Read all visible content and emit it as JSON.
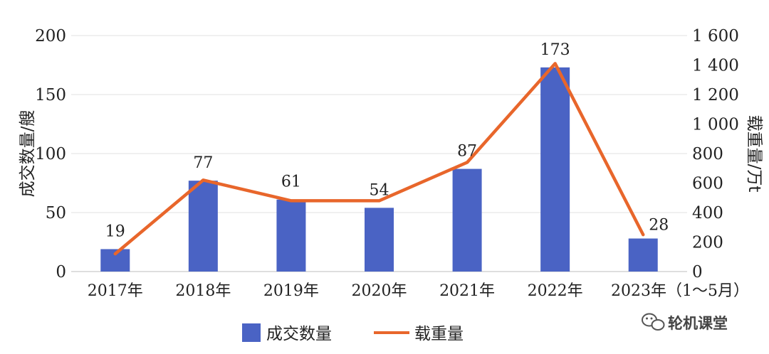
{
  "chart_data": {
    "type": "bar",
    "categories": [
      "2017年",
      "2018年",
      "2019年",
      "2020年",
      "2021年",
      "2022年",
      "2023年（1～5月）"
    ],
    "series": [
      {
        "name": "成交数量",
        "type": "bar",
        "axis": "left",
        "color": "#4a63c4",
        "values": [
          19,
          77,
          61,
          54,
          87,
          173,
          28
        ]
      },
      {
        "name": "载重量",
        "type": "line",
        "axis": "right",
        "color": "#e8662b",
        "values": [
          120,
          620,
          480,
          480,
          740,
          1410,
          250
        ]
      }
    ],
    "ylabel": "成交数量/艘",
    "ylim": [
      0,
      200
    ],
    "yticks": [
      "0",
      "50",
      "100",
      "150",
      "200"
    ],
    "y2label": "载重量/万t",
    "y2lim": [
      0,
      1600
    ],
    "y2ticks": [
      "0",
      "200",
      "400",
      "600",
      "800",
      "1 000",
      "1 200",
      "1 400",
      "1 600"
    ],
    "data_labels": [
      "19",
      "77",
      "61",
      "54",
      "87",
      "173",
      "28"
    ],
    "grid": true,
    "legend_position": "bottom"
  },
  "watermark": {
    "text": "轮机课堂",
    "icon": "wechat-icon"
  }
}
